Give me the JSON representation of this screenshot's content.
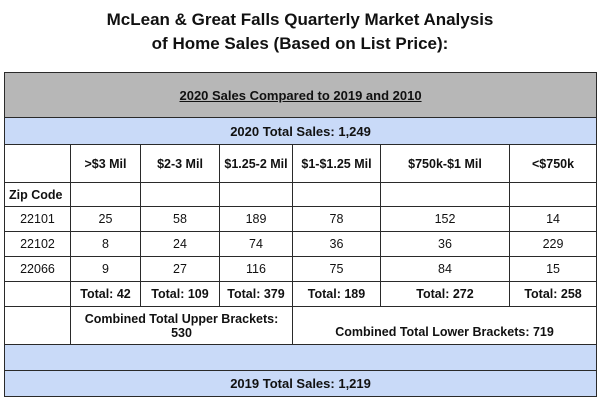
{
  "title_line1": "McLean & Great Falls Quarterly Market Analysis",
  "title_line2": "of Home Sales (Based on List Price):",
  "section_title": "2020 Sales Compared to 2019 and 2010",
  "total_2020": "2020 Total Sales: 1,249",
  "columns": [
    ">$3 Mil",
    "$2-3 Mil",
    "$1.25-2 Mil",
    "$1-$1.25 Mil",
    "$750k-$1 Mil",
    "<$750k"
  ],
  "zip_label": "Zip Code",
  "rows": [
    {
      "zip": "22101",
      "values": [
        "25",
        "58",
        "189",
        "78",
        "152",
        "14"
      ]
    },
    {
      "zip": "22102",
      "values": [
        "8",
        "24",
        "74",
        "36",
        "36",
        "229"
      ]
    },
    {
      "zip": "22066",
      "values": [
        "9",
        "27",
        "116",
        "75",
        "84",
        "15"
      ]
    }
  ],
  "totals": [
    "Total: 42",
    "Total: 109",
    "Total: 379",
    "Total: 189",
    "Total: 272",
    "Total: 258"
  ],
  "combined_upper": "Combined Total Upper Brackets: 530",
  "combined_lower": "Combined Total Lower Brackets: 719",
  "total_2019": "2019 Total Sales: 1,219",
  "colors": {
    "gray_header": "#b7b7b7",
    "blue_header": "#c9daf8",
    "border": "#2a2a2a"
  }
}
